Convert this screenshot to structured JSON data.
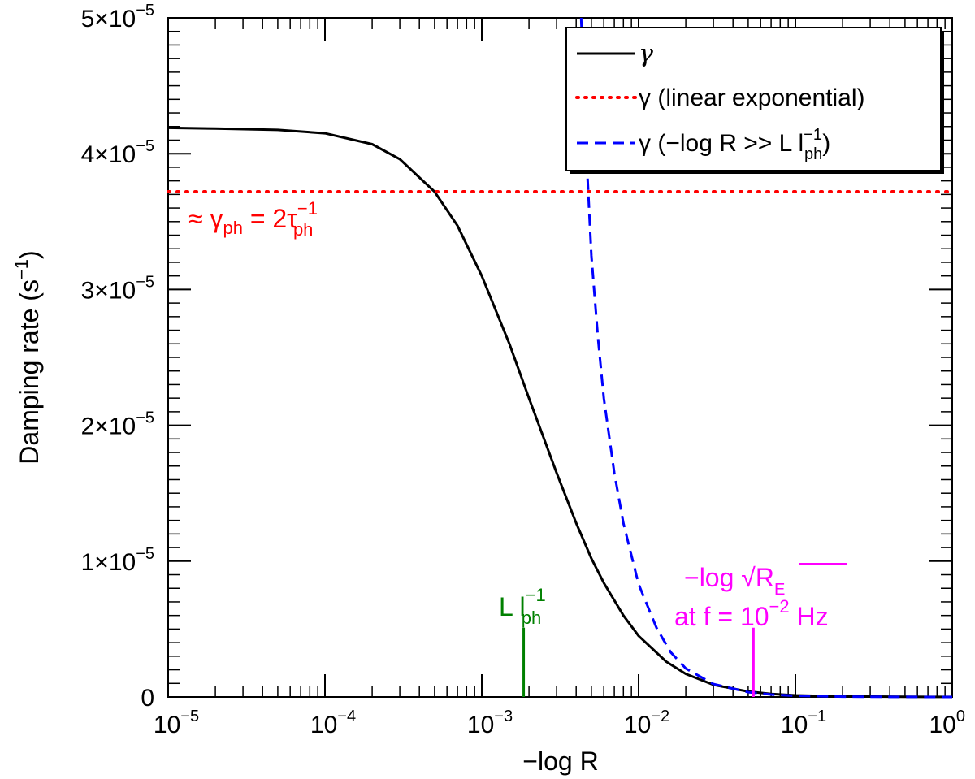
{
  "chart_data": {
    "type": "line",
    "xlabel": "−log R",
    "ylabel": "Damping rate (s",
    "ylabel_sup": "−1",
    "ylabel_close": ")",
    "x_scale": "log",
    "xlim": [
      1e-05,
      1
    ],
    "ylim": [
      0,
      5e-05
    ],
    "grid": false,
    "legend_position": "top-right",
    "x_ticks": [
      {
        "base": "10",
        "exp": "−5"
      },
      {
        "base": "10",
        "exp": "−4"
      },
      {
        "base": "10",
        "exp": "−3"
      },
      {
        "base": "10",
        "exp": "−2"
      },
      {
        "base": "10",
        "exp": "−1"
      },
      {
        "base": "10",
        "exp": "0"
      }
    ],
    "y_ticks": [
      {
        "value": 0,
        "text": "0",
        "sup": ""
      },
      {
        "value": 1e-05,
        "text": "1×10",
        "sup": "−5"
      },
      {
        "value": 2e-05,
        "text": "2×10",
        "sup": "−5"
      },
      {
        "value": 3e-05,
        "text": "3×10",
        "sup": "−5"
      },
      {
        "value": 4e-05,
        "text": "4×10",
        "sup": "−5"
      },
      {
        "value": 5e-05,
        "text": "5×10",
        "sup": "−5"
      }
    ],
    "series": [
      {
        "name": "γ",
        "color": "#000000",
        "style": "solid",
        "x": [
          1e-05,
          2e-05,
          5e-05,
          0.0001,
          0.0002,
          0.0003,
          0.0005,
          0.0007,
          0.001,
          0.0015,
          0.002,
          0.003,
          0.004,
          0.005,
          0.006,
          0.008,
          0.01,
          0.015,
          0.02,
          0.03,
          0.05,
          0.07,
          0.1,
          0.2,
          0.5,
          1
        ],
        "y": [
          4.19e-05,
          4.185e-05,
          4.175e-05,
          4.15e-05,
          4.07e-05,
          3.96e-05,
          3.72e-05,
          3.47e-05,
          3.1e-05,
          2.6e-05,
          2.2e-05,
          1.65e-05,
          1.28e-05,
          1.02e-05,
          8.4e-06,
          6e-06,
          4.5e-06,
          2.6e-06,
          1.7e-06,
          9e-07,
          4e-07,
          2.2e-07,
          1.2e-07,
          4e-08,
          1e-08,
          3e-09
        ]
      },
      {
        "name": "γ (linear exponential)",
        "color": "#ff0000",
        "style": "dotted",
        "x": [
          1e-05,
          1
        ],
        "y": [
          3.72e-05,
          3.72e-05
        ]
      },
      {
        "name": "γ (−log R >> L l",
        "name_sup": "−1",
        "name_sub": "ph",
        "name_close": ")",
        "color": "#0000ff",
        "style": "dashed",
        "x": [
          0.0043,
          0.0046,
          0.005,
          0.0055,
          0.006,
          0.007,
          0.008,
          0.01,
          0.013,
          0.016,
          0.02,
          0.03,
          0.05,
          0.07,
          0.1,
          0.2,
          0.5,
          1
        ],
        "y": [
          5e-05,
          4.1e-05,
          3.25e-05,
          2.65e-05,
          2.2e-05,
          1.65e-05,
          1.28e-05,
          8.3e-06,
          5.1e-06,
          3.3e-06,
          2.1e-06,
          9.5e-07,
          3.5e-07,
          1.8e-07,
          9e-08,
          2.2e-08,
          4e-09,
          1e-09
        ]
      }
    ],
    "annotations": {
      "gamma_ph": {
        "text": "≈ γ",
        "sub1": "ph",
        "mid": " = 2τ",
        "sup": "−1",
        "sub2": "ph",
        "color": "#ff0000"
      },
      "l_ph": {
        "text": "L l",
        "sup": "−1",
        "sub": "ph",
        "x": 0.00185,
        "ytop": 5.1e-06,
        "color": "#008000"
      },
      "re": {
        "line1": "−log √R",
        "line1_sub": "E",
        "line2": "at f = 10",
        "line2_sup": "−2",
        "line2_end": " Hz",
        "x": 0.054,
        "ytop": 5.1e-06,
        "color": "#ff00ff"
      }
    }
  }
}
